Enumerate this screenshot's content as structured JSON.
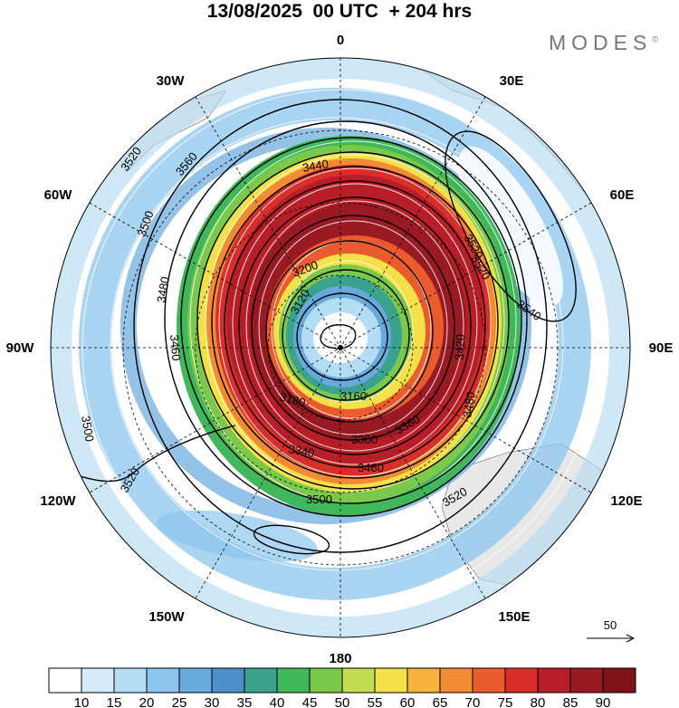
{
  "title": "13/08/2025  00 UTC  + 204 hrs",
  "brand": "MODES",
  "brand_mark": "©",
  "longitudes": {
    "north": "0",
    "n_east": "30E",
    "ne": "60E",
    "east": "90E",
    "se": "120E",
    "s_east": "150E",
    "south": "180",
    "s_west": "150W",
    "sw": "120W",
    "west": "90W",
    "nw": "60W",
    "n_west": "30W"
  },
  "contour_labels": [
    "3520",
    "3560",
    "3500",
    "3480",
    "3460",
    "3440",
    "3500",
    "3520",
    "3540",
    "3480",
    "3420",
    "3200",
    "3120",
    "3160",
    "3180",
    "3300",
    "3340",
    "3460",
    "3500",
    "3520",
    "3520",
    "3520",
    "3360"
  ],
  "vector_reference": "50",
  "colorbar": {
    "labels": [
      "10",
      "15",
      "20",
      "25",
      "30",
      "35",
      "40",
      "45",
      "50",
      "55",
      "60",
      "65",
      "70",
      "75",
      "80",
      "85",
      "90"
    ],
    "colors": [
      "#ffffff",
      "#d6ecfb",
      "#b3dcf5",
      "#8cc6ee",
      "#67aadd",
      "#4d8fc8",
      "#3ba28e",
      "#3fb75a",
      "#7ac94a",
      "#c1dc4e",
      "#f4e14a",
      "#f7b33e",
      "#f38a34",
      "#ea5b2e",
      "#d92f2a",
      "#b81e27",
      "#991a22",
      "#7e1419"
    ]
  }
}
